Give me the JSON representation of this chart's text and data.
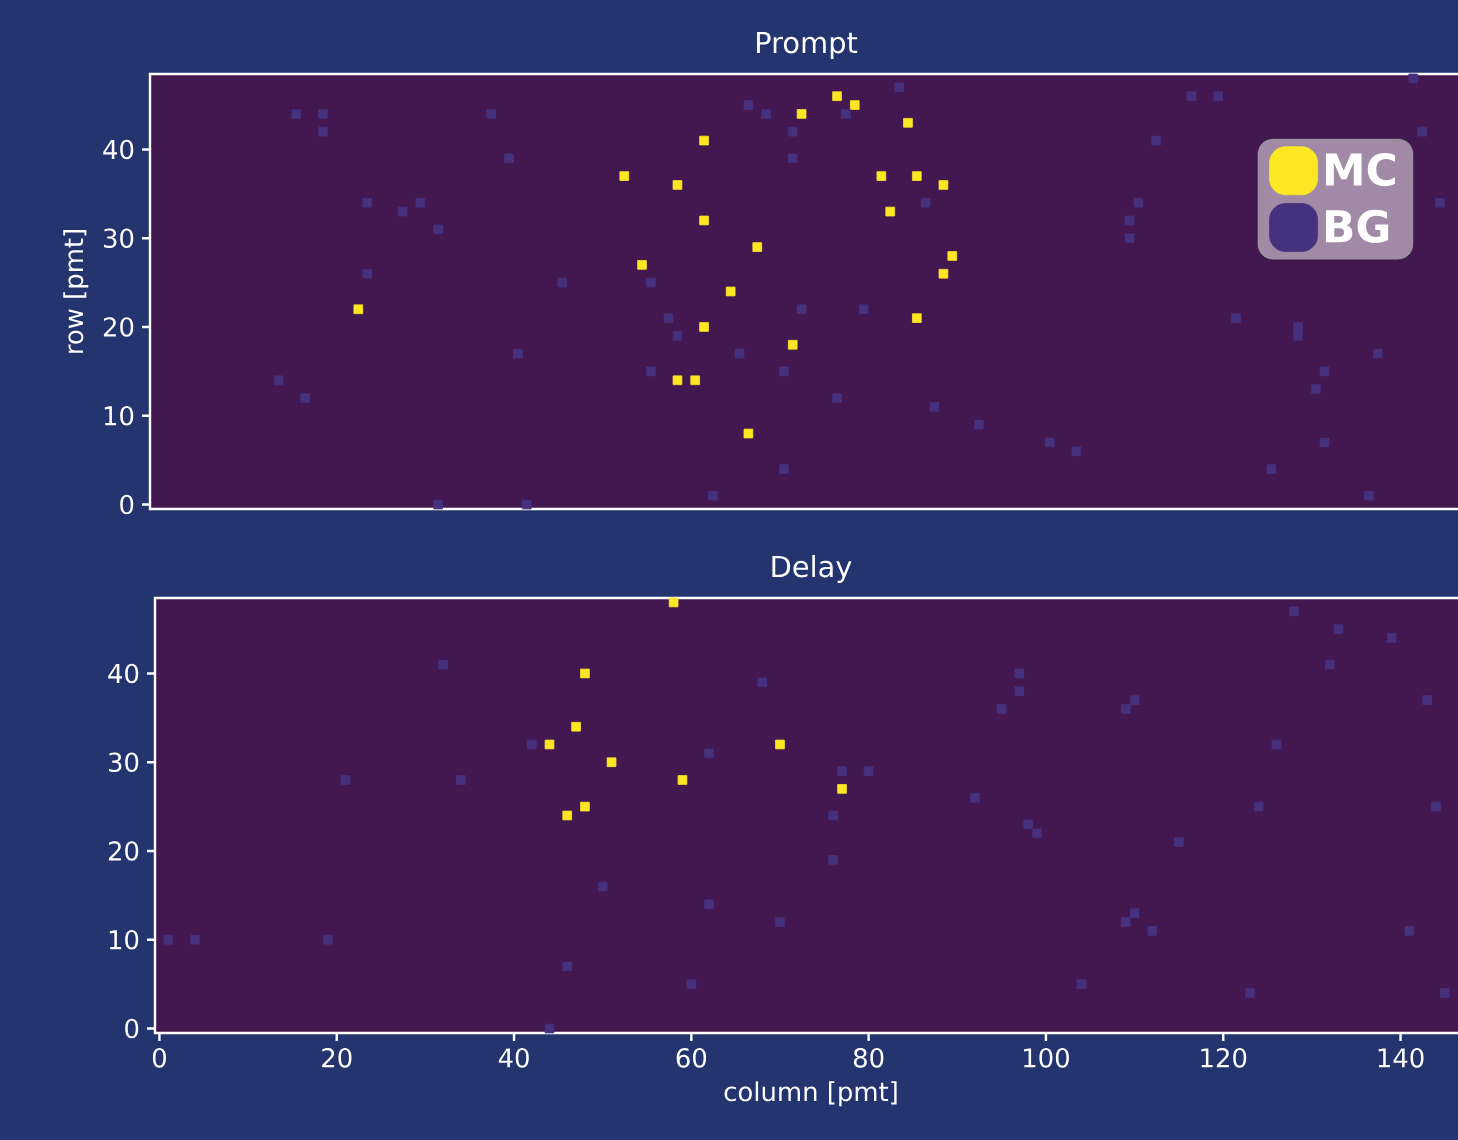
{
  "chart_data": [
    {
      "type": "scatter",
      "title": "Prompt",
      "ylabel": "row [pmt]",
      "xlim": [
        -0.5,
        147.5
      ],
      "ylim": [
        -0.5,
        48.5
      ],
      "yticks": [
        0,
        10,
        20,
        30,
        40
      ],
      "tick_labels": "y",
      "marker": "square",
      "legend": "top right",
      "series": [
        {
          "name": "MC",
          "color": "#fde725",
          "x": [
            23,
            53,
            55,
            59,
            62,
            62,
            62,
            59,
            61,
            65,
            67,
            68,
            72,
            73,
            77,
            79,
            85,
            82,
            83,
            86,
            89,
            90,
            89,
            86
          ],
          "values": [
            22,
            37,
            27,
            36,
            41,
            32,
            20,
            14,
            14,
            24,
            8,
            29,
            18,
            44,
            46,
            45,
            43,
            37,
            33,
            37,
            36,
            28,
            26,
            21
          ]
        },
        {
          "name": "BG",
          "color": "#46317e",
          "x": [
            16,
            19,
            19,
            14,
            17,
            24,
            24,
            28,
            30,
            32,
            32,
            38,
            40,
            41,
            42,
            46,
            56,
            56,
            58,
            59,
            63,
            66,
            67,
            69,
            72,
            72,
            71,
            71,
            73,
            77,
            78,
            80,
            84,
            87,
            88,
            93,
            101,
            104,
            110,
            110,
            111,
            113,
            117,
            120,
            122,
            126,
            129,
            129,
            131,
            132,
            132,
            138,
            137,
            142,
            143,
            145
          ],
          "values": [
            44,
            44,
            42,
            14,
            12,
            26,
            34,
            33,
            34,
            31,
            0,
            44,
            39,
            17,
            0,
            25,
            25,
            15,
            21,
            19,
            1,
            17,
            45,
            44,
            42,
            39,
            15,
            4,
            22,
            12,
            44,
            22,
            47,
            34,
            11,
            9,
            7,
            6,
            32,
            30,
            34,
            41,
            46,
            46,
            21,
            4,
            19,
            20,
            13,
            15,
            7,
            17,
            1,
            48,
            42,
            34
          ]
        }
      ]
    },
    {
      "type": "scatter",
      "title": "Delay",
      "xlabel": "column [pmt]",
      "xlim": [
        -0.5,
        147.5
      ],
      "ylim": [
        -0.5,
        48.5
      ],
      "xticks": [
        0,
        20,
        40,
        60,
        80,
        100,
        120,
        140
      ],
      "yticks": [
        0,
        10,
        20,
        30,
        40
      ],
      "marker": "square",
      "series": [
        {
          "color": "#fde725",
          "x": [
            58,
            48,
            47,
            44,
            51,
            59,
            70,
            77,
            48,
            46
          ],
          "values": [
            48,
            40,
            34,
            32,
            30,
            28,
            32,
            27,
            25,
            24
          ]
        },
        {
          "color": "#46317e",
          "x": [
            1,
            4,
            19,
            21,
            32,
            34,
            42,
            44,
            46,
            50,
            60,
            62,
            62,
            68,
            70,
            76,
            76,
            77,
            80,
            92,
            97,
            97,
            95,
            109,
            110,
            128,
            133,
            139,
            132,
            143,
            126,
            98,
            99,
            115,
            124,
            144,
            109,
            110,
            112,
            141,
            104,
            123,
            145
          ],
          "values": [
            10,
            10,
            10,
            28,
            41,
            28,
            32,
            0,
            7,
            16,
            5,
            31,
            14,
            39,
            12,
            24,
            19,
            29,
            29,
            26,
            40,
            38,
            36,
            36,
            37,
            47,
            45,
            44,
            41,
            37,
            32,
            23,
            22,
            21,
            25,
            25,
            12,
            13,
            11,
            11,
            5,
            4,
            4
          ]
        }
      ]
    }
  ]
}
